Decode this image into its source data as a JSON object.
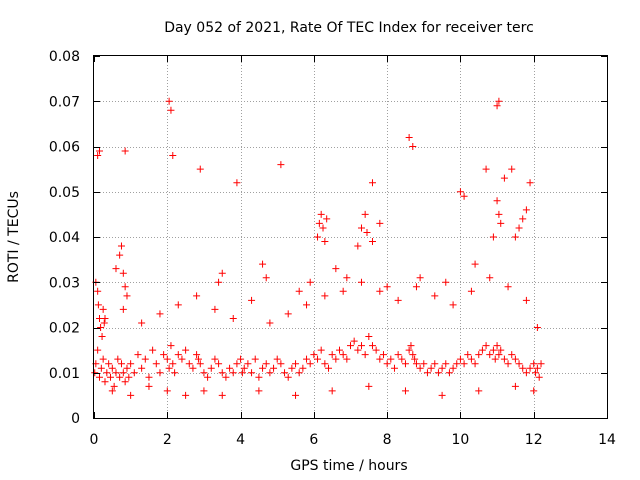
{
  "chart_data": {
    "type": "scatter",
    "title": "Day 052 of 2021, Rate Of TEC Index for receiver terc",
    "xlabel": "GPS time / hours",
    "ylabel": "ROTI / TECUs",
    "xlim": [
      0,
      14
    ],
    "ylim": [
      0,
      0.08
    ],
    "xticks": [
      0,
      2,
      4,
      6,
      8,
      10,
      12,
      14
    ],
    "xtick_labels": [
      "0",
      "2",
      "4",
      "6",
      "8",
      "10",
      "12",
      "14"
    ],
    "yticks": [
      0,
      0.01,
      0.02,
      0.03,
      0.04,
      0.05,
      0.06,
      0.07,
      0.08
    ],
    "ytick_labels": [
      "0",
      "0.01",
      "0.02",
      "0.03",
      "0.04",
      "0.05",
      "0.06",
      "0.07",
      "0.08"
    ],
    "grid": true,
    "legend": "none",
    "marker": "plus",
    "color": "#ff0000",
    "series": [
      {
        "x": [
          0.02,
          0.05,
          0.1,
          0.15,
          0.2,
          0.25,
          0.3,
          0.35,
          0.4,
          0.45,
          0.5,
          0.55,
          0.6,
          0.65,
          0.7,
          0.75,
          0.8,
          0.85,
          0.9,
          0.95,
          0.05,
          0.1,
          0.12,
          0.15,
          0.18,
          0.22,
          0.25,
          0.28,
          0.6,
          0.7,
          0.75,
          0.8,
          0.85,
          0.9,
          1.0,
          1.1,
          1.2,
          1.3,
          1.4,
          1.5,
          1.6,
          1.7,
          1.8,
          1.9,
          2.0,
          2.05,
          2.1,
          2.15,
          2.2,
          2.3,
          2.4,
          2.5,
          2.6,
          2.7,
          2.8,
          2.85,
          2.9,
          3.0,
          3.1,
          3.2,
          3.3,
          3.4,
          3.5,
          3.6,
          3.7,
          3.8,
          3.9,
          4.0,
          4.05,
          4.1,
          4.2,
          4.3,
          4.4,
          4.5,
          4.6,
          4.7,
          4.8,
          4.9,
          5.0,
          5.1,
          5.2,
          5.3,
          5.4,
          5.5,
          5.6,
          5.7,
          5.8,
          5.9,
          6.0,
          6.1,
          6.2,
          6.3,
          6.4,
          6.5,
          6.6,
          6.7,
          6.8,
          6.9,
          7.0,
          7.1,
          7.2,
          7.3,
          7.4,
          7.5,
          7.6,
          7.7,
          7.8,
          7.9,
          8.0,
          8.1,
          8.2,
          8.3,
          8.4,
          8.5,
          8.6,
          8.65,
          8.7,
          8.75,
          8.8,
          8.9,
          9.0,
          9.1,
          9.2,
          9.3,
          9.4,
          9.5,
          9.6,
          9.7,
          9.8,
          9.9,
          10.0,
          10.1,
          10.2,
          10.3,
          10.4,
          10.5,
          10.6,
          10.7,
          10.8,
          10.9,
          10.95,
          11.0,
          11.05,
          11.1,
          11.2,
          11.3,
          11.4,
          11.5,
          11.6,
          11.7,
          11.8,
          11.9,
          12.0,
          12.05,
          12.1,
          12.15,
          12.2,
          0.3,
          0.8,
          1.3,
          1.8,
          2.3,
          2.8,
          3.3,
          3.8,
          4.3,
          4.8,
          5.3,
          5.8,
          6.3,
          6.8,
          7.3,
          7.8,
          8.3,
          8.8,
          9.3,
          9.8,
          10.3,
          10.8,
          11.3,
          11.8,
          12.1,
          0.5,
          1.0,
          1.5,
          2.0,
          2.5,
          3.0,
          3.5,
          4.5,
          5.5,
          6.5,
          7.5,
          8.5,
          9.5,
          10.5,
          11.5,
          12.0,
          6.1,
          6.15,
          6.2,
          6.25,
          6.3,
          6.35,
          7.2,
          7.3,
          7.4,
          7.45,
          7.6,
          7.8,
          10.9,
          11.0,
          11.05,
          11.1,
          11.5,
          11.6,
          11.7,
          11.8,
          2.05,
          2.1,
          5.1,
          11.0,
          11.05,
          0.1,
          0.15,
          0.85,
          2.15,
          2.9,
          3.9,
          7.6,
          8.6,
          8.7,
          10.0,
          10.1,
          10.7,
          11.2,
          11.4,
          11.9,
          3.4,
          3.5,
          4.6,
          4.7,
          5.6,
          5.9,
          6.6,
          6.9,
          8.0,
          8.9,
          9.6,
          10.4
        ],
        "y": [
          0.01,
          0.012,
          0.015,
          0.009,
          0.011,
          0.013,
          0.008,
          0.01,
          0.012,
          0.009,
          0.011,
          0.007,
          0.01,
          0.013,
          0.009,
          0.012,
          0.01,
          0.008,
          0.011,
          0.009,
          0.03,
          0.028,
          0.025,
          0.022,
          0.02,
          0.018,
          0.024,
          0.021,
          0.033,
          0.036,
          0.038,
          0.032,
          0.029,
          0.027,
          0.012,
          0.01,
          0.014,
          0.011,
          0.013,
          0.009,
          0.015,
          0.012,
          0.01,
          0.014,
          0.013,
          0.011,
          0.016,
          0.012,
          0.01,
          0.014,
          0.013,
          0.015,
          0.012,
          0.011,
          0.014,
          0.013,
          0.012,
          0.01,
          0.009,
          0.011,
          0.013,
          0.012,
          0.01,
          0.009,
          0.011,
          0.01,
          0.012,
          0.013,
          0.01,
          0.011,
          0.012,
          0.01,
          0.013,
          0.009,
          0.011,
          0.012,
          0.01,
          0.011,
          0.013,
          0.012,
          0.01,
          0.009,
          0.011,
          0.012,
          0.01,
          0.011,
          0.013,
          0.012,
          0.014,
          0.013,
          0.015,
          0.012,
          0.011,
          0.014,
          0.013,
          0.015,
          0.014,
          0.013,
          0.016,
          0.017,
          0.015,
          0.016,
          0.014,
          0.018,
          0.016,
          0.015,
          0.013,
          0.014,
          0.012,
          0.013,
          0.011,
          0.014,
          0.013,
          0.012,
          0.015,
          0.016,
          0.014,
          0.013,
          0.012,
          0.011,
          0.012,
          0.01,
          0.011,
          0.012,
          0.01,
          0.011,
          0.012,
          0.01,
          0.011,
          0.012,
          0.013,
          0.012,
          0.014,
          0.013,
          0.012,
          0.014,
          0.015,
          0.016,
          0.014,
          0.015,
          0.013,
          0.016,
          0.014,
          0.015,
          0.013,
          0.012,
          0.014,
          0.013,
          0.012,
          0.011,
          0.01,
          0.011,
          0.012,
          0.01,
          0.011,
          0.009,
          0.012,
          0.022,
          0.024,
          0.021,
          0.023,
          0.025,
          0.027,
          0.024,
          0.022,
          0.026,
          0.021,
          0.023,
          0.025,
          0.027,
          0.028,
          0.03,
          0.028,
          0.026,
          0.029,
          0.027,
          0.025,
          0.028,
          0.031,
          0.029,
          0.026,
          0.02,
          0.006,
          0.005,
          0.007,
          0.006,
          0.005,
          0.006,
          0.005,
          0.006,
          0.005,
          0.006,
          0.007,
          0.006,
          0.005,
          0.006,
          0.007,
          0.006,
          0.04,
          0.043,
          0.045,
          0.042,
          0.039,
          0.044,
          0.038,
          0.042,
          0.045,
          0.041,
          0.039,
          0.043,
          0.04,
          0.048,
          0.045,
          0.043,
          0.04,
          0.042,
          0.044,
          0.046,
          0.07,
          0.068,
          0.056,
          0.069,
          0.07,
          0.058,
          0.059,
          0.059,
          0.058,
          0.055,
          0.052,
          0.052,
          0.062,
          0.06,
          0.05,
          0.049,
          0.055,
          0.053,
          0.055,
          0.052,
          0.03,
          0.032,
          0.034,
          0.031,
          0.028,
          0.03,
          0.033,
          0.031,
          0.029,
          0.031,
          0.03,
          0.034
        ],
        "marker": "plus",
        "color": "#ff0000"
      }
    ]
  }
}
